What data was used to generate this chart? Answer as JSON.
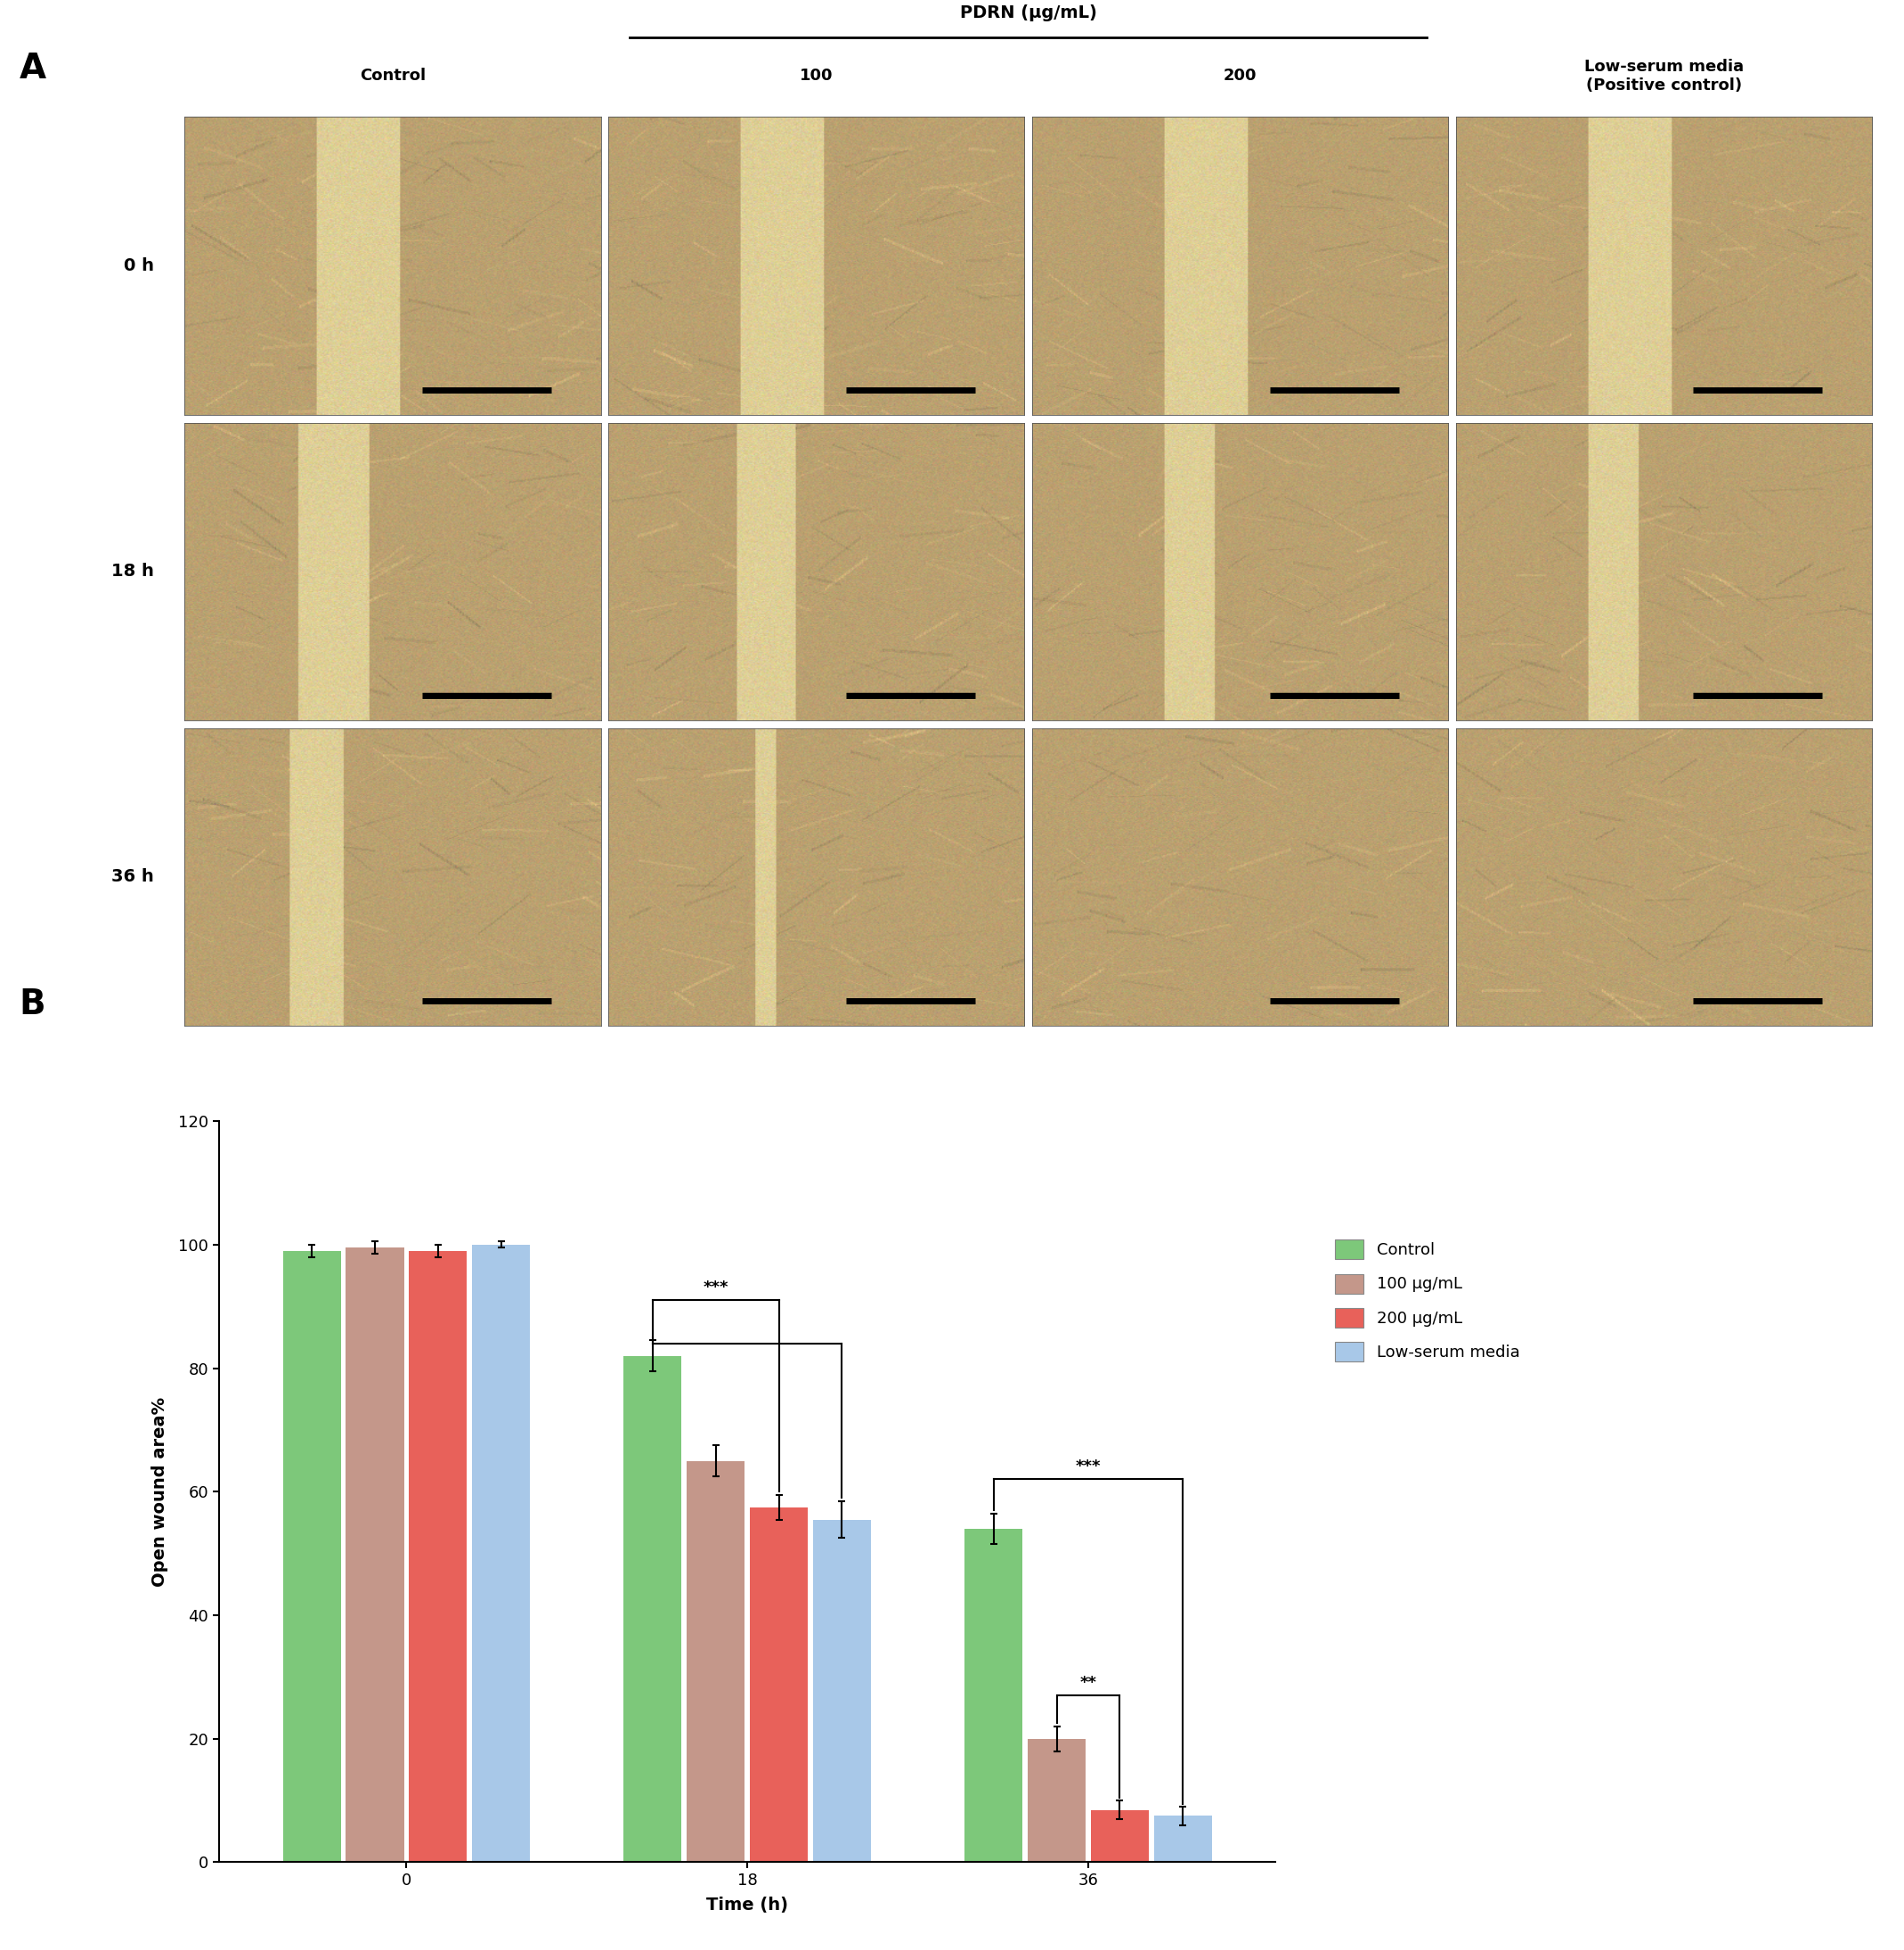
{
  "title_A": "A",
  "title_B": "B",
  "col_headers": [
    "Control",
    "100",
    "200",
    "Low-serum media\n(Positive control)"
  ],
  "pdrn_label": "PDRN (μg/mL)",
  "row_labels": [
    "0 h",
    "18 h",
    "36 h"
  ],
  "time_points": [
    0,
    18,
    36
  ],
  "groups": [
    "Control",
    "100 μg/mL",
    "200 μg/mL",
    "Low-serum media"
  ],
  "bar_colors": [
    "#7DC87A",
    "#C4978A",
    "#E8615A",
    "#A8C8E8"
  ],
  "values": {
    "0": [
      99.0,
      99.5,
      99.0,
      100.0
    ],
    "18": [
      82.0,
      65.0,
      57.5,
      55.5
    ],
    "36": [
      54.0,
      20.0,
      8.5,
      7.5
    ]
  },
  "errors": {
    "0": [
      1.0,
      1.0,
      1.0,
      0.5
    ],
    "18": [
      2.5,
      2.5,
      2.0,
      3.0
    ],
    "36": [
      2.5,
      2.0,
      1.5,
      1.5
    ]
  },
  "ylabel": "Open wound area%",
  "xlabel": "Time (h)",
  "ylim": [
    0,
    120
  ],
  "yticks": [
    0,
    20,
    40,
    60,
    80,
    100,
    120
  ],
  "legend_labels": [
    "Control",
    "100 μg/mL",
    "200 μg/mL",
    "Low-serum media"
  ],
  "bg_color": "#ffffff"
}
